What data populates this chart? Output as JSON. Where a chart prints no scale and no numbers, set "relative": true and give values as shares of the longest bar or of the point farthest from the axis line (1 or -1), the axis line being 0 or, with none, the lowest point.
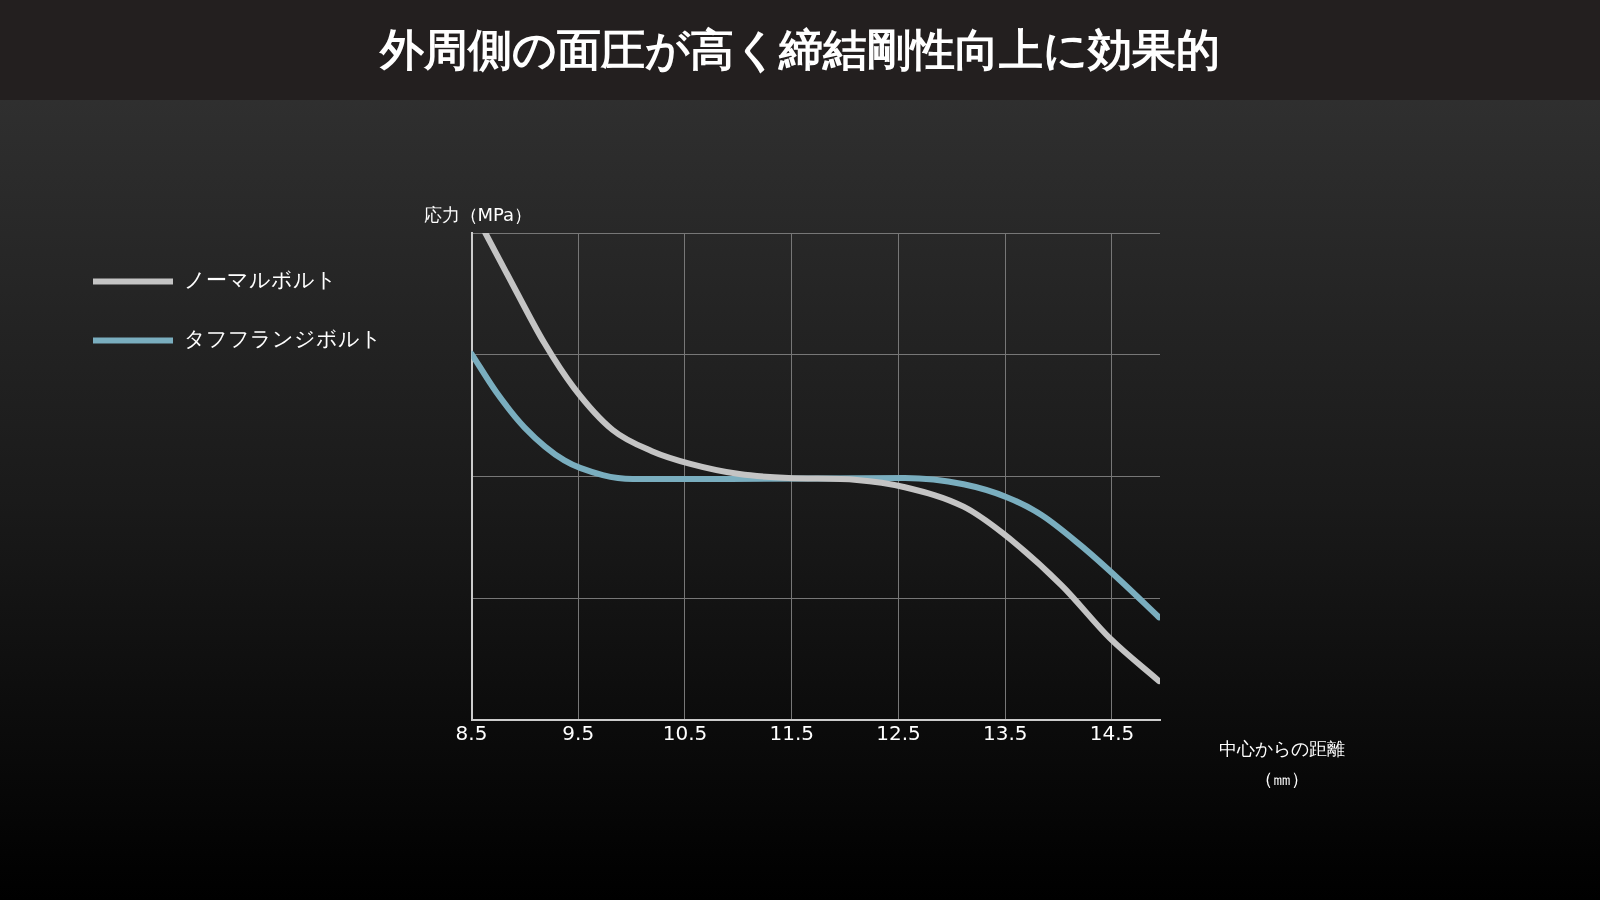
{
  "chart_data": {
    "type": "line",
    "title": "外周側の面圧が高く締結剛性向上に効果的",
    "xlabel": "中心からの距離（㎜）",
    "ylabel": "応力（MPa）",
    "relative": true,
    "xlim": [
      8.5,
      14.95
    ],
    "xticks": [
      8.5,
      9.5,
      10.5,
      11.5,
      12.5,
      13.5,
      14.5
    ],
    "grid": true,
    "legend": "left",
    "marker": "none",
    "line_style": "solid",
    "series": [
      {
        "name": "ノーマルボルト",
        "color": "#c4c4c4",
        "x": [
          8.63,
          8.91,
          9.18,
          9.46,
          9.82,
          10.19,
          10.55,
          11.01,
          11.47,
          12.11,
          12.56,
          13.11,
          13.48,
          14.03,
          14.48,
          14.94
        ],
        "values": [
          1.0,
          0.884,
          0.775,
          0.682,
          0.596,
          0.552,
          0.526,
          0.505,
          0.497,
          0.493,
          0.478,
          0.438,
          0.383,
          0.276,
          0.168,
          0.08
        ]
      },
      {
        "name": "タフフランジボルト",
        "color": "#7aaebf",
        "x": [
          8.5,
          8.73,
          9.0,
          9.37,
          9.73,
          10.01,
          10.92,
          12.56,
          13.11,
          13.52,
          13.84,
          14.21,
          14.57,
          14.94
        ],
        "values": [
          0.752,
          0.674,
          0.6,
          0.533,
          0.503,
          0.495,
          0.495,
          0.497,
          0.484,
          0.457,
          0.421,
          0.358,
          0.288,
          0.211
        ]
      }
    ]
  }
}
